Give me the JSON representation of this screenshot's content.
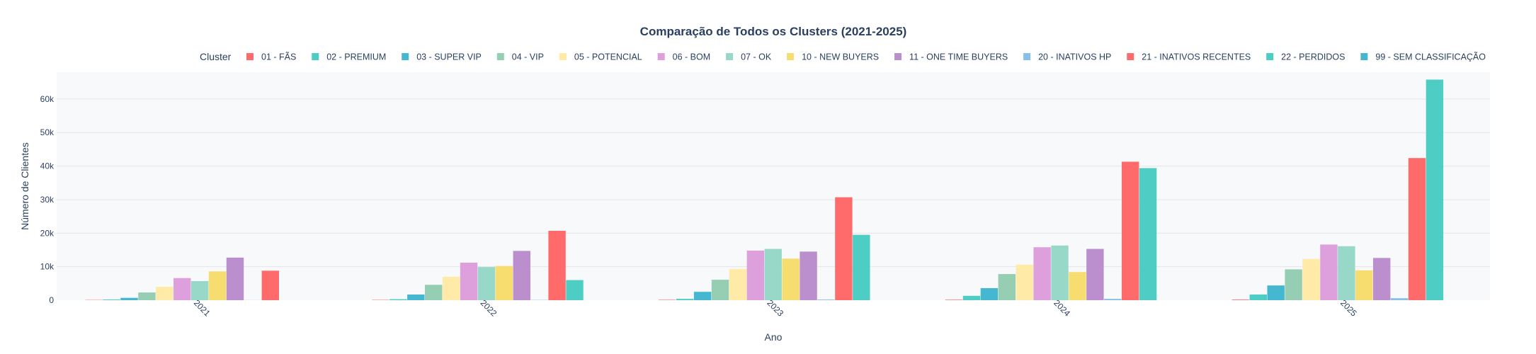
{
  "chart_data": {
    "type": "bar",
    "title": "Comparação de Todos os Clusters (2021-2025)",
    "xlabel": "Ano",
    "ylabel": "Número de Clientes",
    "legend_title": "Cluster",
    "legend_position": "top",
    "grid": true,
    "ylim": [
      0,
      68000
    ],
    "yticks": [
      0,
      10000,
      20000,
      30000,
      40000,
      50000,
      60000
    ],
    "ytick_labels": [
      "0",
      "10k",
      "20k",
      "30k",
      "40k",
      "50k",
      "60k"
    ],
    "categories": [
      "2021",
      "2022",
      "2023",
      "2024",
      "2025"
    ],
    "series": [
      {
        "name": "01 - FÃS",
        "color": "#FF6B6B",
        "values": [
          80,
          100,
          120,
          150,
          180
        ]
      },
      {
        "name": "02 - PREMIUM",
        "color": "#4ECDC4",
        "values": [
          200,
          300,
          400,
          1300,
          1700
        ]
      },
      {
        "name": "03 - SUPER VIP",
        "color": "#45B7D1",
        "values": [
          700,
          1700,
          2500,
          3600,
          4400
        ]
      },
      {
        "name": "04 - VIP",
        "color": "#96CEB4",
        "values": [
          2300,
          4600,
          6100,
          7800,
          9200
        ]
      },
      {
        "name": "05 - POTENCIAL",
        "color": "#FFEAA7",
        "values": [
          4000,
          7000,
          9300,
          10600,
          12300
        ]
      },
      {
        "name": "06 - BOM",
        "color": "#DDA0DD",
        "values": [
          6600,
          11200,
          14800,
          15800,
          16600
        ]
      },
      {
        "name": "07 - OK",
        "color": "#98D8C8",
        "values": [
          5700,
          9900,
          15300,
          16300,
          16100
        ]
      },
      {
        "name": "10 - NEW BUYERS",
        "color": "#F7DC6F",
        "values": [
          8600,
          10200,
          12400,
          8400,
          8900
        ]
      },
      {
        "name": "11 - ONE TIME BUYERS",
        "color": "#BB8FCE",
        "values": [
          12700,
          14700,
          14500,
          15300,
          12600
        ]
      },
      {
        "name": "20 - INATIVOS HP",
        "color": "#85C1E9",
        "values": [
          30,
          80,
          200,
          400,
          600
        ]
      },
      {
        "name": "21 - INATIVOS RECENTES",
        "color": "#FF6B6B",
        "values": [
          8800,
          20700,
          30700,
          41300,
          42400
        ]
      },
      {
        "name": "22 - PERDIDOS",
        "color": "#4ECDC4",
        "values": [
          0,
          6000,
          19500,
          39400,
          65800
        ]
      },
      {
        "name": "99 - SEM CLASSIFICAÇÃO",
        "color": "#45B7D1",
        "values": [
          0,
          0,
          0,
          0,
          0
        ]
      }
    ]
  }
}
